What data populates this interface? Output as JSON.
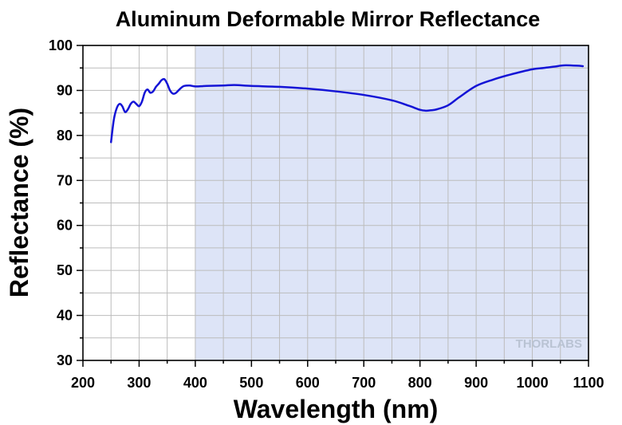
{
  "chart_data": {
    "type": "line",
    "title": "Aluminum Deformable Mirror Reflectance",
    "xlabel": "Wavelength (nm)",
    "ylabel": "Reflectance (%)",
    "xlim": [
      200,
      1100
    ],
    "ylim": [
      30,
      100
    ],
    "xticks": [
      200,
      300,
      400,
      500,
      600,
      700,
      800,
      900,
      1000,
      1100
    ],
    "yticks": [
      30,
      40,
      50,
      60,
      70,
      80,
      90,
      100
    ],
    "grid": true,
    "shaded_region": {
      "x_start": 400,
      "x_end": 1100,
      "color": "#dde4f7"
    },
    "watermark": "THORLABS",
    "series": [
      {
        "color": "#1414d6",
        "x": [
          250,
          255,
          260,
          265,
          270,
          275,
          280,
          285,
          290,
          295,
          300,
          305,
          310,
          315,
          320,
          325,
          330,
          335,
          340,
          345,
          350,
          355,
          360,
          365,
          370,
          375,
          380,
          390,
          400,
          420,
          450,
          470,
          500,
          550,
          600,
          650,
          700,
          750,
          780,
          800,
          810,
          820,
          830,
          850,
          870,
          900,
          930,
          960,
          1000,
          1020,
          1040,
          1050,
          1060,
          1080,
          1090
        ],
        "y": [
          78.5,
          83.5,
          86,
          87,
          86.5,
          85.2,
          85.8,
          87,
          87.5,
          87,
          86.5,
          87.5,
          89.5,
          90.2,
          89.5,
          89.8,
          90.8,
          91.5,
          92.3,
          92.5,
          91.5,
          90,
          89.3,
          89.4,
          90,
          90.6,
          91,
          91.1,
          90.9,
          91,
          91.1,
          91.2,
          91,
          90.8,
          90.4,
          89.8,
          89,
          87.8,
          86.6,
          85.7,
          85.5,
          85.6,
          85.8,
          86.7,
          88.5,
          91,
          92.4,
          93.5,
          94.7,
          95,
          95.3,
          95.5,
          95.6,
          95.5,
          95.4
        ]
      }
    ]
  }
}
